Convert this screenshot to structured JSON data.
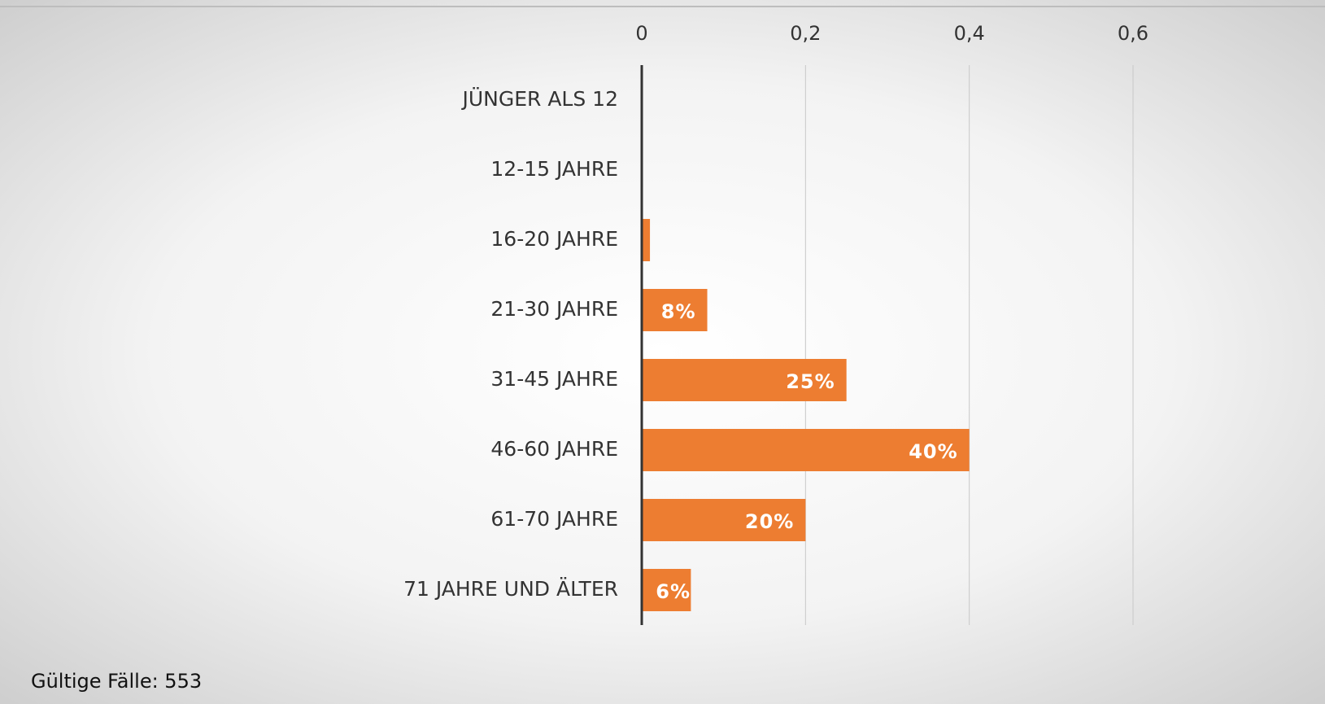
{
  "chart_data": {
    "type": "barh",
    "categories": [
      "JÜNGER ALS 12",
      "12-15 JAHRE",
      "16-20 JAHRE",
      "21-30 JAHRE",
      "31-45 JAHRE",
      "46-60 JAHRE",
      "61-70 JAHRE",
      "71 JAHRE UND ÄLTER"
    ],
    "values": [
      0,
      0,
      0.01,
      0.08,
      0.25,
      0.4,
      0.2,
      0.06
    ],
    "value_labels": [
      null,
      null,
      null,
      "8%",
      "25%",
      "40%",
      "20%",
      "6%"
    ],
    "color": "#ed7d31",
    "xlim": [
      0,
      0.6
    ],
    "xticks": [
      0,
      {
        "value": 0.2,
        "label": "0,2"
      },
      {
        "value": 0.4,
        "label": "0,4"
      },
      {
        "value": 0.6,
        "label": "0,6"
      }
    ],
    "grid": true,
    "footnote": "Gültige Fälle: 553"
  }
}
